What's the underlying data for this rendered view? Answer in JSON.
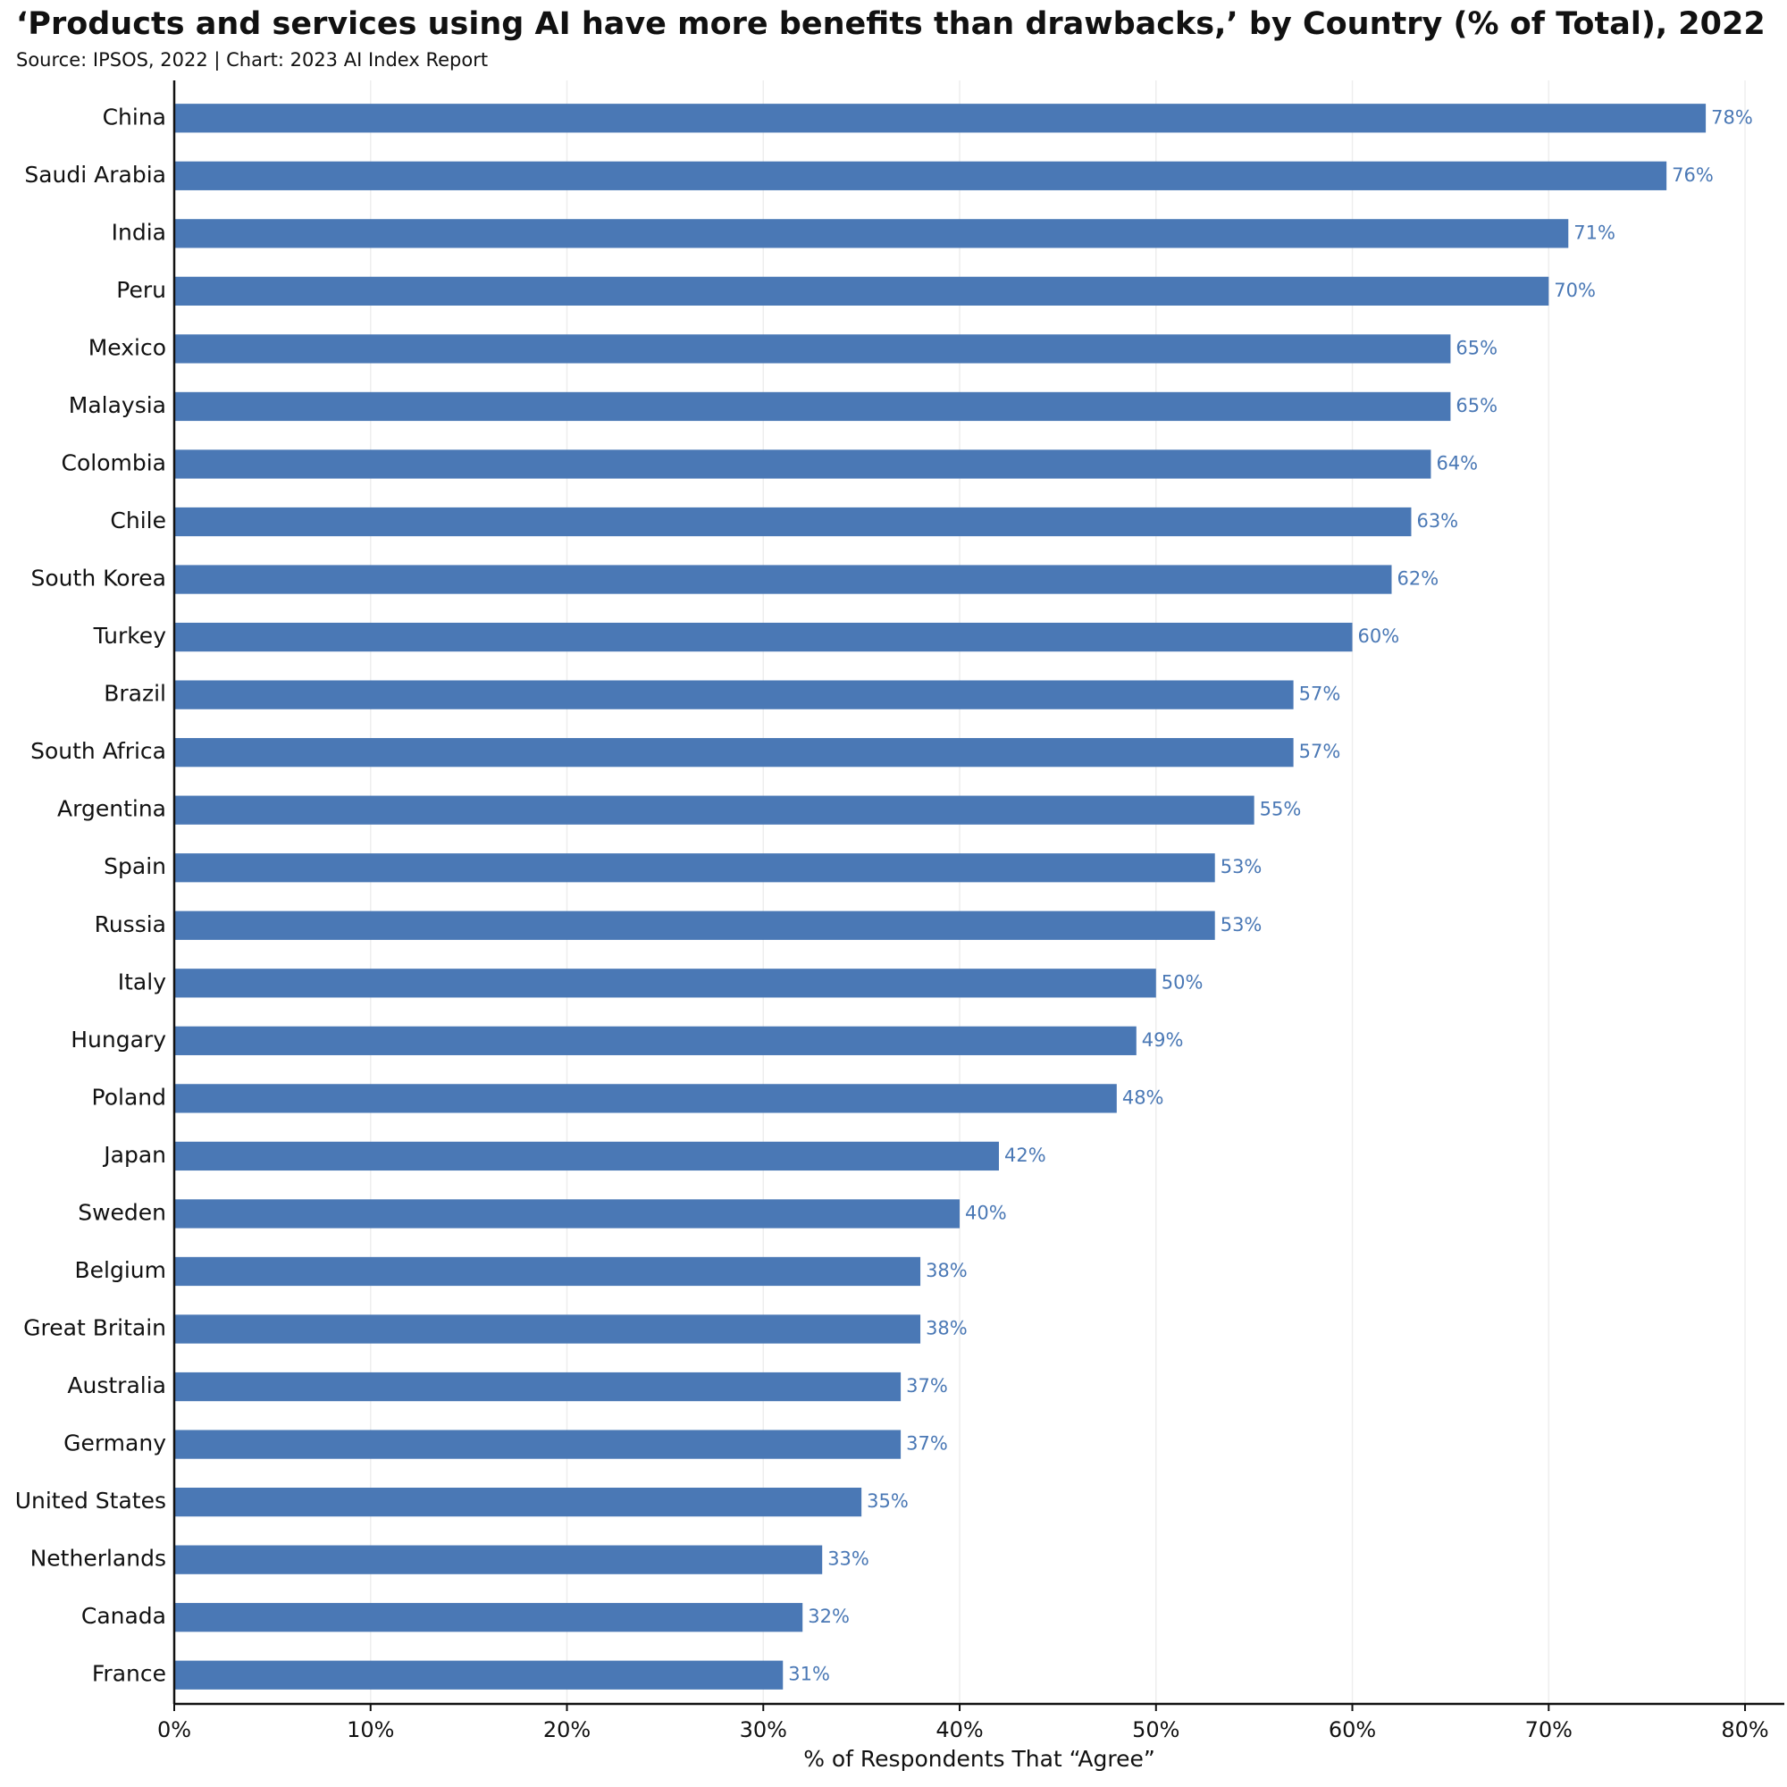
{
  "chart_data": {
    "type": "hbar",
    "title": "‘Products and services using AI have more benefits than drawbacks,’ by Country (% of Total), 2022",
    "subtitle": "Source: IPSOS, 2022 | Chart: 2023 AI Index Report",
    "x_label": "% of Respondents That “Agree”",
    "categories": [
      "China",
      "Saudi Arabia",
      "India",
      "Peru",
      "Mexico",
      "Malaysia",
      "Colombia",
      "Chile",
      "South Korea",
      "Turkey",
      "Brazil",
      "South Africa",
      "Argentina",
      "Spain",
      "Russia",
      "Italy",
      "Hungary",
      "Poland",
      "Japan",
      "Sweden",
      "Belgium",
      "Great Britain",
      "Australia",
      "Germany",
      "United States",
      "Netherlands",
      "Canada",
      "France"
    ],
    "values": [
      78,
      76,
      71,
      70,
      65,
      65,
      64,
      63,
      62,
      60,
      57,
      57,
      55,
      53,
      53,
      50,
      49,
      48,
      42,
      40,
      38,
      38,
      37,
      37,
      35,
      33,
      32,
      31
    ],
    "value_labels": [
      "78%",
      "76%",
      "71%",
      "70%",
      "65%",
      "65%",
      "64%",
      "63%",
      "62%",
      "60%",
      "57%",
      "57%",
      "55%",
      "53%",
      "53%",
      "50%",
      "49%",
      "48%",
      "42%",
      "40%",
      "38%",
      "38%",
      "37%",
      "37%",
      "35%",
      "33%",
      "32%",
      "31%"
    ],
    "color": "#4a78b5",
    "xlim": [
      0,
      82
    ],
    "xticks": [
      {
        "value": 0,
        "label": "0%"
      },
      {
        "value": 10,
        "label": "10%"
      },
      {
        "value": 20,
        "label": "20%"
      },
      {
        "value": 30,
        "label": "30%"
      },
      {
        "value": 40,
        "label": "40%"
      },
      {
        "value": 50,
        "label": "50%"
      },
      {
        "value": 60,
        "label": "60%"
      },
      {
        "value": 70,
        "label": "70%"
      },
      {
        "value": 80,
        "label": "80%"
      }
    ],
    "grid": true
  }
}
